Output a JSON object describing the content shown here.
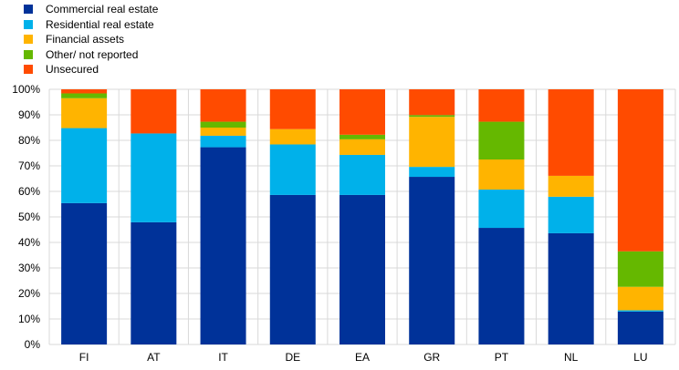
{
  "chart_data": {
    "type": "bar",
    "stacked": true,
    "title": "",
    "xlabel": "",
    "ylabel": "",
    "ylim": [
      0,
      100
    ],
    "yticks": [
      "0%",
      "10%",
      "20%",
      "30%",
      "40%",
      "50%",
      "60%",
      "70%",
      "80%",
      "90%",
      "100%"
    ],
    "grid": true,
    "legend_position": "top-left",
    "categories": [
      "FI",
      "AT",
      "IT",
      "DE",
      "EA",
      "GR",
      "PT",
      "NL",
      "LU"
    ],
    "series": [
      {
        "name": "Commercial real estate",
        "color": "#003299",
        "values": [
          55.4,
          47.9,
          77.3,
          58.6,
          58.6,
          65.7,
          45.7,
          43.6,
          12.9
        ]
      },
      {
        "name": "Residential real estate",
        "color": "#00B1EA",
        "values": [
          29.4,
          34.8,
          4.5,
          19.8,
          15.7,
          3.9,
          15.0,
          14.3,
          0.5
        ]
      },
      {
        "name": "Financial assets",
        "color": "#FFB400",
        "values": [
          11.7,
          0,
          3.2,
          6.0,
          6.1,
          19.6,
          11.8,
          8.2,
          9.2
        ]
      },
      {
        "name": "Other/ not reported",
        "color": "#65B800",
        "values": [
          1.9,
          0,
          2.3,
          0,
          1.8,
          0.7,
          14.8,
          0,
          13.9
        ]
      },
      {
        "name": "Unsecured",
        "color": "#FF4B00",
        "values": [
          1.6,
          17.3,
          12.7,
          15.6,
          17.8,
          10.1,
          12.7,
          33.9,
          63.5
        ]
      }
    ]
  }
}
